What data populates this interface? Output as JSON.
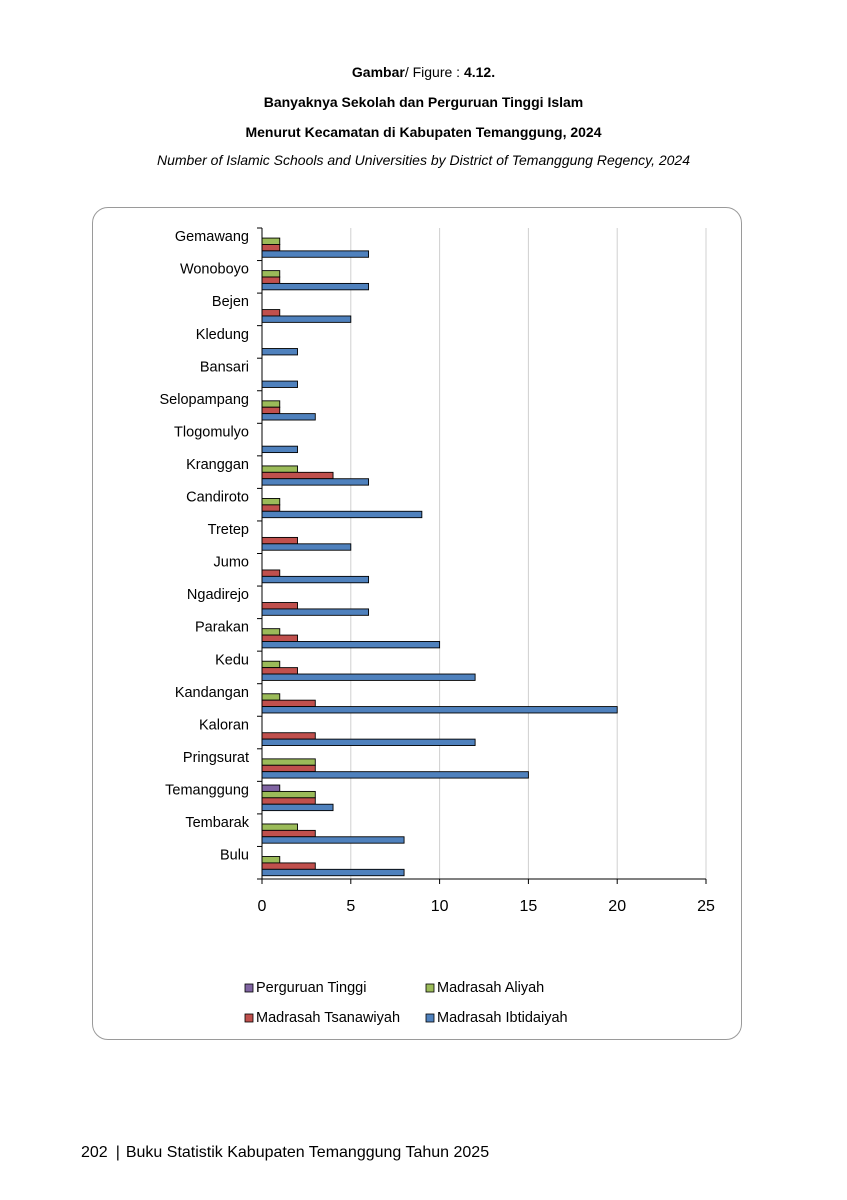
{
  "header": {
    "figure_prefix": "Gambar",
    "figure_suffix": "/ Figure : ",
    "figure_number": "4.12.",
    "title_line1": "Banyaknya Sekolah dan Perguruan Tinggi Islam",
    "title_line2": "Menurut Kecamatan di Kabupaten Temanggung, 2024",
    "subtitle_en": "Number of Islamic Schools and Universities by District of Temanggung Regency, 2024"
  },
  "chart_data": {
    "type": "bar",
    "orientation": "horizontal",
    "categories": [
      "Gemawang",
      "Wonoboyo",
      "Bejen",
      "Kledung",
      "Bansari",
      "Selopampang",
      "Tlogomulyo",
      "Kranggan",
      "Candiroto",
      "Tretep",
      "Jumo",
      "Ngadirejo",
      "Parakan",
      "Kedu",
      "Kandangan",
      "Kaloran",
      "Pringsurat",
      "Temanggung",
      "Tembarak",
      "Bulu"
    ],
    "series": [
      {
        "name": "Perguruan Tinggi",
        "color": "#8064a2",
        "values": [
          0,
          0,
          0,
          0,
          0,
          0,
          0,
          0,
          0,
          0,
          0,
          0,
          0,
          0,
          0,
          0,
          0,
          1,
          0,
          0
        ]
      },
      {
        "name": "Madrasah Aliyah",
        "color": "#9bbb59",
        "values": [
          1,
          1,
          0,
          0,
          0,
          1,
          0,
          2,
          1,
          0,
          0,
          0,
          1,
          1,
          1,
          0,
          3,
          3,
          2,
          1
        ]
      },
      {
        "name": "Madrasah Tsanawiyah",
        "color": "#c0504d",
        "values": [
          1,
          1,
          1,
          0,
          0,
          1,
          0,
          4,
          1,
          2,
          1,
          2,
          2,
          2,
          3,
          3,
          3,
          3,
          3,
          3
        ]
      },
      {
        "name": "Madrasah Ibtidaiyah",
        "color": "#4f81bd",
        "values": [
          6,
          6,
          5,
          2,
          2,
          3,
          2,
          6,
          9,
          5,
          6,
          6,
          10,
          12,
          20,
          12,
          15,
          4,
          8,
          8
        ]
      }
    ],
    "xlim": [
      0,
      25
    ],
    "xticks": [
      "0",
      "5",
      "10",
      "15",
      "20",
      "25"
    ],
    "grid": true,
    "legend_position": "bottom"
  },
  "footer": {
    "page_number": "202",
    "separator": "|",
    "book_title": "Buku Statistik Kabupaten Temanggung Tahun 2025"
  }
}
